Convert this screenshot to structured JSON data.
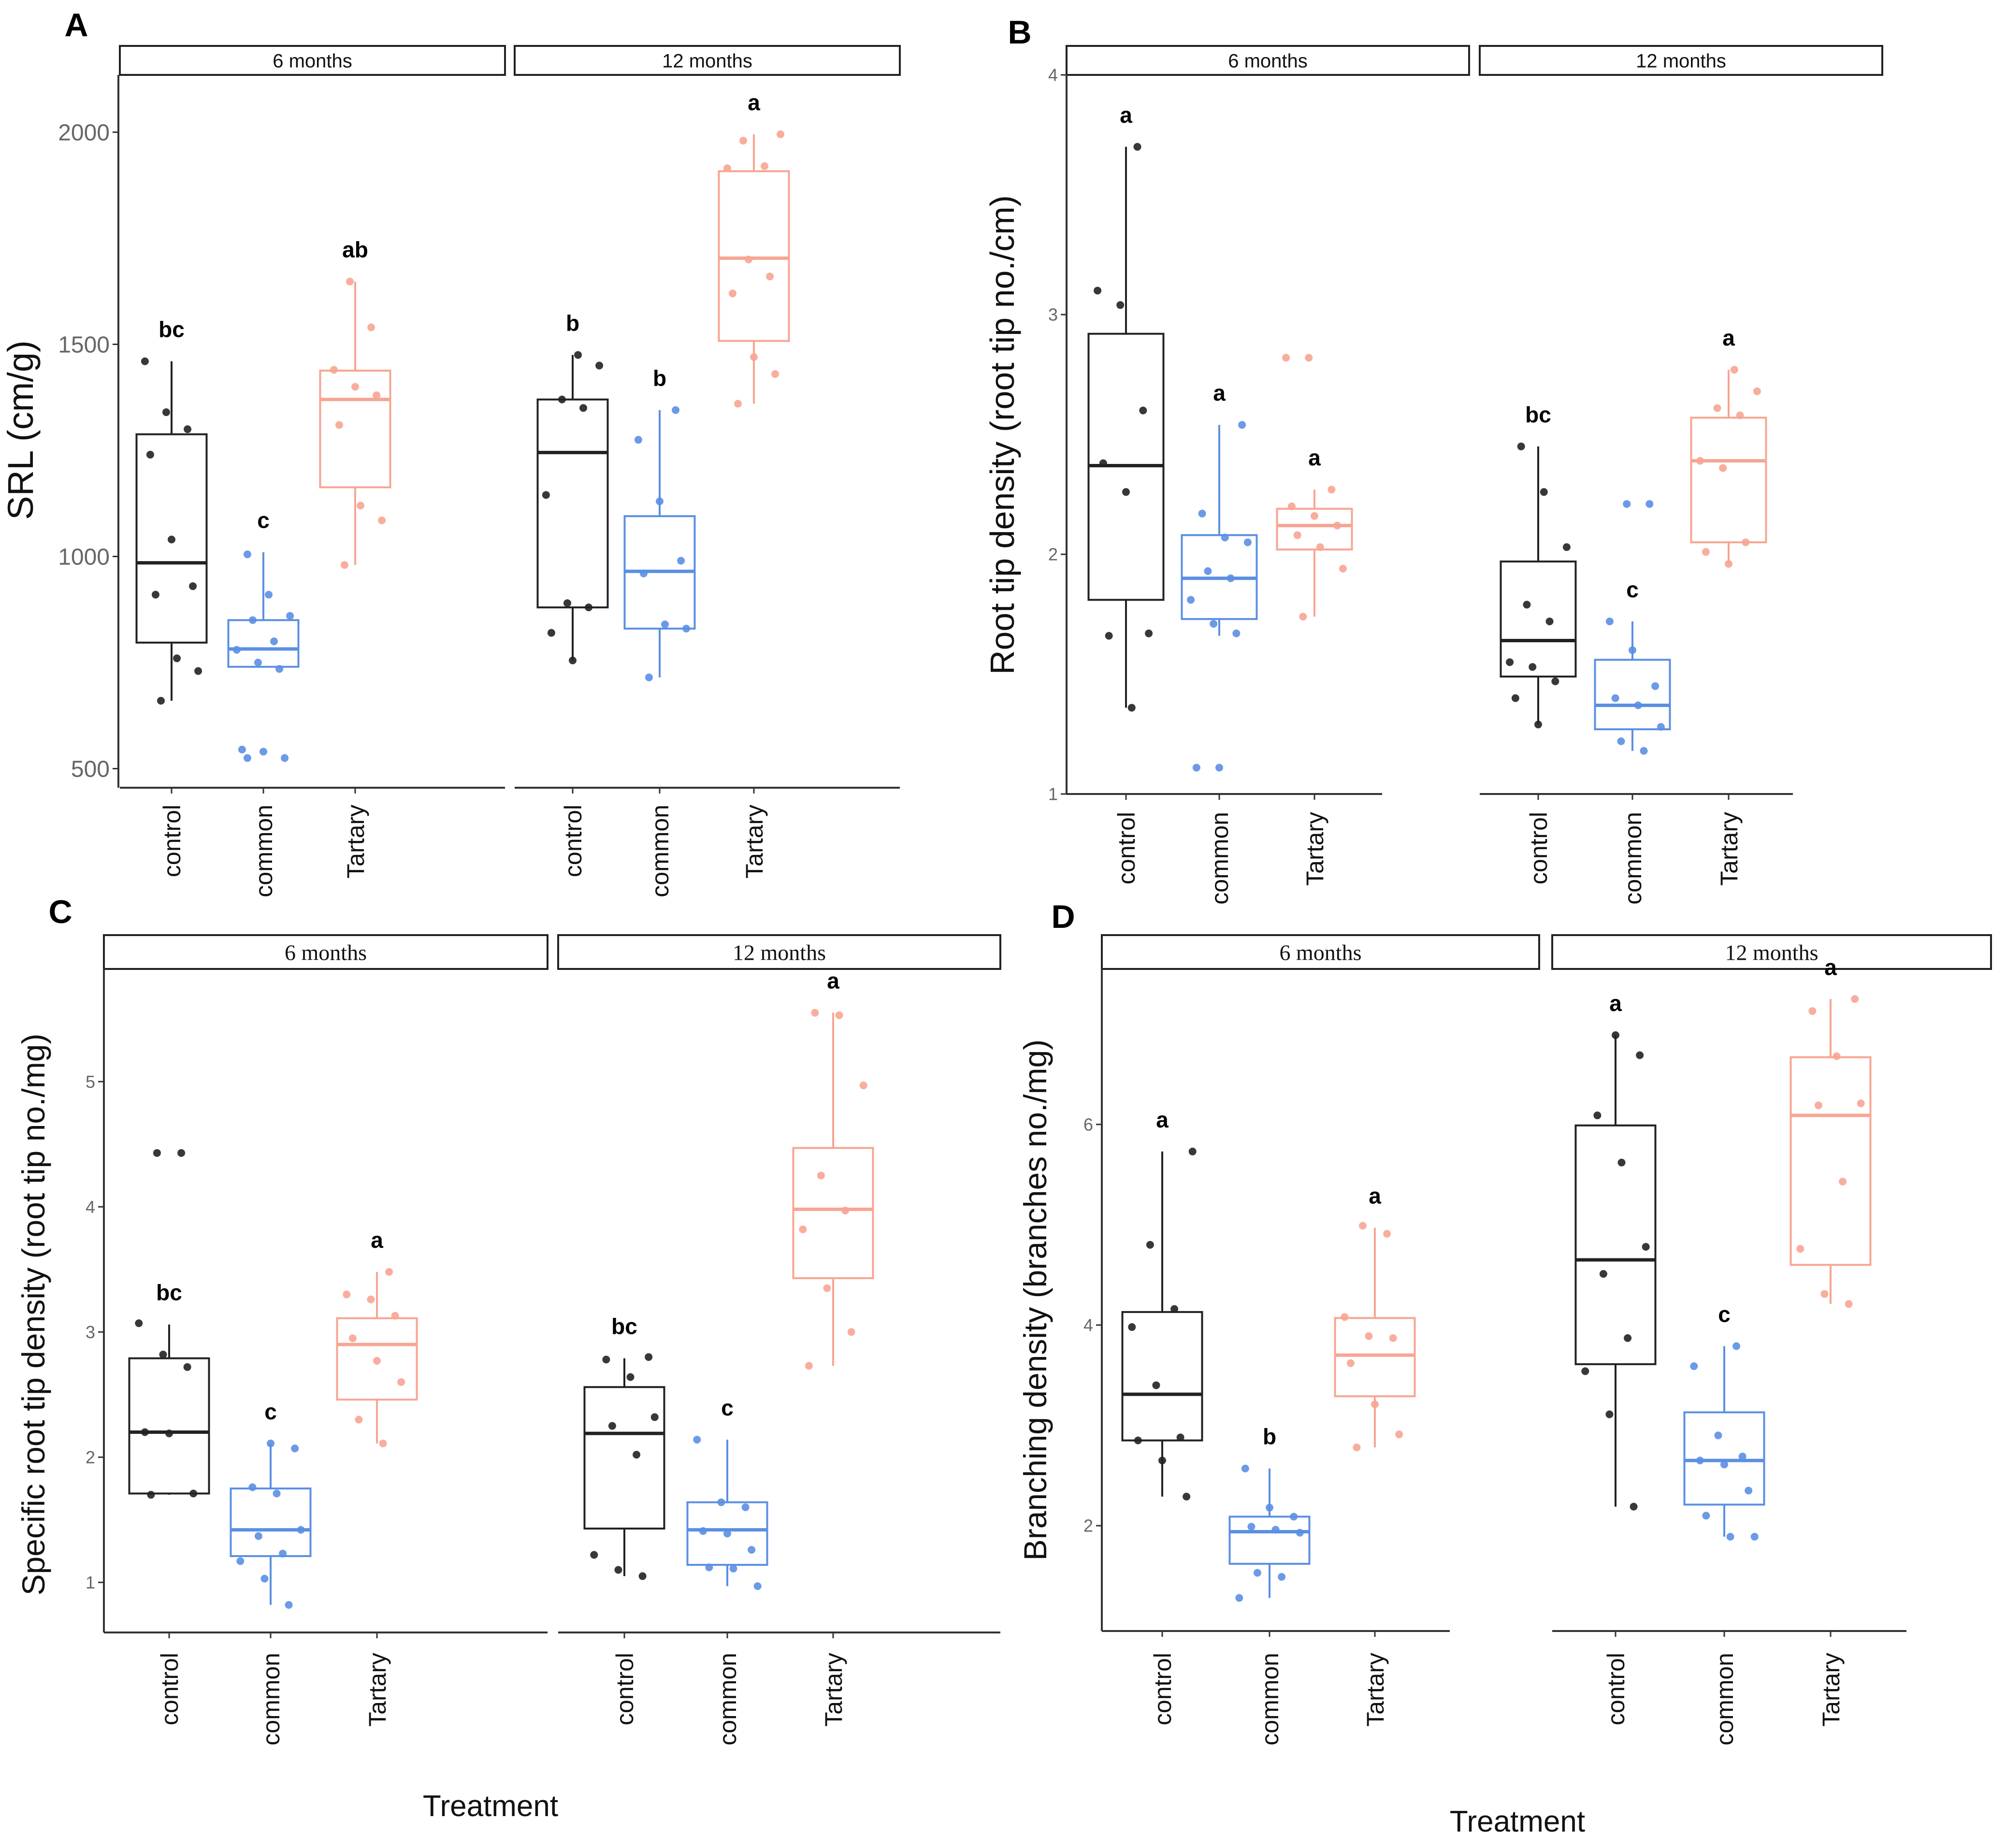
{
  "figure": {
    "colors": {
      "control": "#222222",
      "common": "#5b8fe3",
      "Tartary": "#f7a592",
      "strip_fill": "#ffffff",
      "axis": "#333333"
    },
    "treatment_labels": [
      "Treatment",
      "Treatment"
    ]
  },
  "chart_data": [
    {
      "panel": "A",
      "type": "box",
      "ylabel": "SRL (cm/g)",
      "yticks": [
        500,
        1000,
        1500,
        2000
      ],
      "ylim": [
        455,
        2135
      ],
      "facets": [
        "6 months",
        "12 months"
      ],
      "categories": [
        "control",
        "common",
        "Tartary"
      ],
      "boxes": [
        {
          "facet": 0,
          "cat": 0,
          "min": 660,
          "q1": 797,
          "median": 985,
          "q3": 1288,
          "max": 1460,
          "letter": "bc",
          "points": [
            1460,
            1340,
            1300,
            1240,
            1040,
            930,
            910,
            760,
            730,
            660
          ]
        },
        {
          "facet": 0,
          "cat": 1,
          "min": 740,
          "q1": 740,
          "median": 782,
          "q3": 850,
          "max": 1010,
          "letter": "c",
          "points": [
            1005,
            910,
            860,
            850,
            800,
            780,
            750,
            735,
            545,
            540,
            525,
            525
          ]
        },
        {
          "facet": 0,
          "cat": 2,
          "min": 980,
          "q1": 1163,
          "median": 1370,
          "q3": 1438,
          "max": 1648,
          "letter": "ab",
          "points": [
            1648,
            1540,
            1440,
            1400,
            1380,
            1310,
            1120,
            1085,
            980
          ]
        },
        {
          "facet": 1,
          "cat": 0,
          "min": 755,
          "q1": 880,
          "median": 1245,
          "q3": 1370,
          "max": 1475,
          "letter": "b",
          "points": [
            1475,
            1450,
            1370,
            1350,
            1145,
            890,
            880,
            820,
            755
          ]
        },
        {
          "facet": 1,
          "cat": 1,
          "min": 715,
          "q1": 830,
          "median": 965,
          "q3": 1095,
          "max": 1345,
          "letter": "b",
          "points": [
            1345,
            1275,
            1130,
            990,
            960,
            840,
            830,
            715
          ]
        },
        {
          "facet": 1,
          "cat": 2,
          "min": 1360,
          "q1": 1508,
          "median": 1703,
          "q3": 1908,
          "max": 1995,
          "letter": "a",
          "points": [
            1995,
            1980,
            1920,
            1915,
            1700,
            1660,
            1620,
            1470,
            1430,
            1360
          ]
        }
      ]
    },
    {
      "panel": "B",
      "type": "box",
      "ylabel": "Root tip density (root tip no./cm)",
      "yticks": [
        1,
        2,
        3,
        4
      ],
      "ylim": [
        1,
        4
      ],
      "facets": [
        "6 months",
        "12 months"
      ],
      "categories": [
        "control",
        "common",
        "Tartary"
      ],
      "boxes": [
        {
          "facet": 0,
          "cat": 0,
          "min": 1.36,
          "q1": 1.81,
          "median": 2.37,
          "q3": 2.92,
          "max": 3.7,
          "letter": "a",
          "points": [
            3.7,
            3.1,
            3.04,
            2.6,
            2.38,
            2.26,
            1.67,
            1.66,
            1.36
          ]
        },
        {
          "facet": 0,
          "cat": 1,
          "min": 1.66,
          "q1": 1.73,
          "median": 1.9,
          "q3": 2.08,
          "max": 2.54,
          "letter": "a",
          "points": [
            2.54,
            2.17,
            2.07,
            2.05,
            1.93,
            1.9,
            1.81,
            1.71,
            1.67,
            1.11,
            1.11
          ]
        },
        {
          "facet": 0,
          "cat": 2,
          "min": 1.74,
          "q1": 2.02,
          "median": 2.12,
          "q3": 2.19,
          "max": 2.27,
          "letter": "a",
          "points": [
            2.82,
            2.82,
            2.27,
            2.2,
            2.16,
            2.12,
            2.08,
            2.03,
            1.94,
            1.74
          ]
        },
        {
          "facet": 1,
          "cat": 0,
          "min": 1.29,
          "q1": 1.49,
          "median": 1.64,
          "q3": 1.97,
          "max": 2.45,
          "letter": "bc",
          "points": [
            2.45,
            2.26,
            2.03,
            1.79,
            1.72,
            1.55,
            1.53,
            1.47,
            1.4,
            1.29
          ]
        },
        {
          "facet": 1,
          "cat": 1,
          "min": 1.18,
          "q1": 1.27,
          "median": 1.37,
          "q3": 1.56,
          "max": 1.72,
          "letter": "c",
          "points": [
            2.21,
            2.21,
            1.72,
            1.6,
            1.45,
            1.4,
            1.37,
            1.28,
            1.22,
            1.18
          ]
        },
        {
          "facet": 1,
          "cat": 2,
          "min": 1.96,
          "q1": 2.05,
          "median": 2.39,
          "q3": 2.57,
          "max": 2.77,
          "letter": "a",
          "points": [
            2.77,
            2.68,
            2.61,
            2.58,
            2.39,
            2.36,
            2.05,
            2.01,
            1.96
          ]
        }
      ]
    },
    {
      "panel": "C",
      "type": "box",
      "ylabel": "Specific root tip density (root tip no./mg)",
      "yticks": [
        1,
        2,
        3,
        4,
        5
      ],
      "ylim": [
        0.6,
        5.9
      ],
      "facets": [
        "6 months",
        "12 months"
      ],
      "categories": [
        "control",
        "common",
        "Tartary"
      ],
      "boxes": [
        {
          "facet": 0,
          "cat": 0,
          "min": 1.7,
          "q1": 1.71,
          "median": 2.2,
          "q3": 2.79,
          "max": 3.06,
          "letter": "bc",
          "points": [
            4.43,
            4.43,
            3.07,
            2.82,
            2.72,
            2.2,
            2.19,
            1.71,
            1.7
          ]
        },
        {
          "facet": 0,
          "cat": 1,
          "min": 0.82,
          "q1": 1.21,
          "median": 1.42,
          "q3": 1.75,
          "max": 2.11,
          "letter": "c",
          "points": [
            2.11,
            2.07,
            1.76,
            1.71,
            1.42,
            1.37,
            1.23,
            1.17,
            1.03,
            0.82
          ]
        },
        {
          "facet": 0,
          "cat": 2,
          "min": 2.11,
          "q1": 2.46,
          "median": 2.9,
          "q3": 3.11,
          "max": 3.48,
          "letter": "a",
          "points": [
            3.48,
            3.3,
            3.26,
            3.13,
            2.95,
            2.77,
            2.6,
            2.3,
            2.11
          ]
        },
        {
          "facet": 1,
          "cat": 0,
          "min": 1.05,
          "q1": 1.43,
          "median": 2.19,
          "q3": 2.56,
          "max": 2.79,
          "letter": "bc",
          "points": [
            2.8,
            2.78,
            2.64,
            2.32,
            2.25,
            2.02,
            1.22,
            1.1,
            1.05
          ]
        },
        {
          "facet": 1,
          "cat": 1,
          "min": 0.97,
          "q1": 1.14,
          "median": 1.42,
          "q3": 1.64,
          "max": 2.14,
          "letter": "c",
          "points": [
            2.14,
            1.64,
            1.6,
            1.41,
            1.39,
            1.26,
            1.12,
            1.11,
            0.97
          ]
        },
        {
          "facet": 1,
          "cat": 2,
          "min": 2.73,
          "q1": 3.43,
          "median": 3.98,
          "q3": 4.47,
          "max": 5.55,
          "letter": "a",
          "points": [
            5.55,
            5.53,
            4.97,
            4.25,
            3.97,
            3.82,
            3.35,
            3.0,
            2.73
          ]
        }
      ]
    },
    {
      "panel": "D",
      "type": "box",
      "ylabel": "Branching density (branches no./mg)",
      "yticks": [
        2,
        4,
        6
      ],
      "ylim": [
        0.95,
        7.55
      ],
      "facets": [
        "6 months",
        "12 months"
      ],
      "categories": [
        "control",
        "common",
        "Tartary"
      ],
      "boxes": [
        {
          "facet": 0,
          "cat": 0,
          "min": 2.29,
          "q1": 2.85,
          "median": 3.31,
          "q3": 4.13,
          "max": 5.73,
          "letter": "a",
          "points": [
            5.73,
            4.8,
            4.16,
            3.98,
            3.4,
            2.88,
            2.85,
            2.65,
            2.29
          ]
        },
        {
          "facet": 0,
          "cat": 1,
          "min": 1.28,
          "q1": 1.62,
          "median": 1.94,
          "q3": 2.09,
          "max": 2.57,
          "letter": "b",
          "points": [
            2.57,
            2.18,
            2.09,
            1.99,
            1.96,
            1.93,
            1.53,
            1.49,
            1.28
          ]
        },
        {
          "facet": 0,
          "cat": 2,
          "min": 2.78,
          "q1": 3.29,
          "median": 3.7,
          "q3": 4.07,
          "max": 4.97,
          "letter": "a",
          "points": [
            4.99,
            4.91,
            4.08,
            3.89,
            3.87,
            3.62,
            3.21,
            2.91,
            2.78
          ]
        },
        {
          "facet": 1,
          "cat": 0,
          "min": 2.19,
          "q1": 3.61,
          "median": 4.65,
          "q3": 5.99,
          "max": 6.89,
          "letter": "a",
          "points": [
            6.89,
            6.69,
            6.09,
            5.62,
            4.78,
            4.51,
            3.87,
            3.54,
            3.11,
            2.19
          ]
        },
        {
          "facet": 1,
          "cat": 1,
          "min": 1.89,
          "q1": 2.21,
          "median": 2.65,
          "q3": 3.13,
          "max": 3.79,
          "letter": "c",
          "points": [
            3.79,
            3.59,
            2.9,
            2.69,
            2.65,
            2.61,
            2.35,
            2.1,
            1.89,
            1.89
          ]
        },
        {
          "facet": 1,
          "cat": 2,
          "min": 4.21,
          "q1": 4.6,
          "median": 6.09,
          "q3": 6.67,
          "max": 7.25,
          "letter": "a",
          "points": [
            7.25,
            7.13,
            6.68,
            6.21,
            6.19,
            5.43,
            4.76,
            4.31,
            4.21
          ]
        }
      ]
    }
  ]
}
